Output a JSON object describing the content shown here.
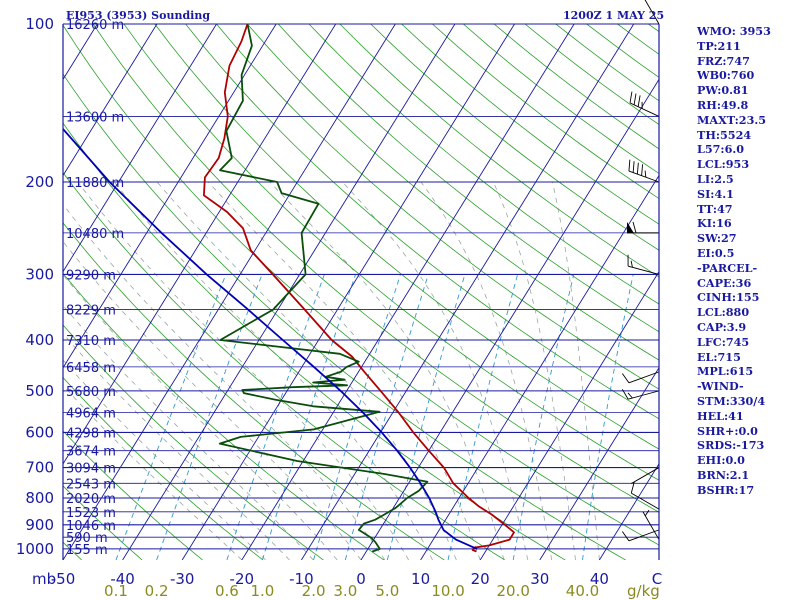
{
  "header": {
    "station": "EI953 (3953) Sounding",
    "time": "1200Z  1 MAY 25"
  },
  "colors": {
    "isobar": "#1a1aa0",
    "isotherm": "#1a1aa0",
    "dry_adiabat": "#2ca02c",
    "moist_adiabat": "#9aa8a0",
    "mixing_ratio": "#3399cc",
    "temperature": "#b00000",
    "dewpoint": "#0b4d0b",
    "parcel": "#0000b4",
    "axis_text": "#1a1aa0",
    "mixing_text": "#8a8a20"
  },
  "stats": [
    "WMO: 3953",
    "TP:211",
    "FRZ:747",
    "WB0:760",
    "PW:0.81",
    "RH:49.8",
    "MAXT:23.5",
    "TH:5524",
    "L57:6.0",
    "LCL:953",
    "LI:2.5",
    "SI:4.1",
    "TT:47",
    "KI:16",
    "SW:27",
    "EI:0.5",
    "-PARCEL-",
    "CAPE:36",
    "CINH:155",
    "LCL:880",
    "CAP:3.9",
    "LFC:745",
    "EL:715",
    "MPL:615",
    "-WIND-",
    "STM:330/4",
    "HEL:41",
    "SHR+:0.0",
    "SRDS:-173",
    "EHI:0.0",
    "BRN:2.1",
    "BSHR:17"
  ],
  "chart_data": {
    "type": "line",
    "title": "EI953 (3953) Sounding",
    "diagram": "skew-T log-p",
    "pressure_axis_unit": "mb",
    "pressure_range": [
      100,
      1050
    ],
    "temperature_range": [
      -50,
      50
    ],
    "pressure_ticks": [
      "100",
      "200",
      "300",
      "400",
      "500",
      "600",
      "700",
      "800",
      "900",
      "1000"
    ],
    "temperature_ticks": [
      "-50",
      "-40",
      "-30",
      "-20",
      "-10",
      "0",
      "10",
      "20",
      "30",
      "40",
      "C"
    ],
    "mixing_ratio_unit": "g/kg",
    "mixing_ratio_ticks": [
      "0.1",
      "0.2",
      "0.6",
      "1.0",
      "2.0",
      "3.0",
      "5.0",
      "10.0",
      "20.0",
      "40.0"
    ],
    "mixing_ratio_values": [
      0.1,
      0.2,
      0.6,
      1.0,
      2.0,
      3.0,
      5.0,
      10.0,
      20.0,
      40.0
    ],
    "height_levels": [
      {
        "p": 100,
        "label": "16260 m"
      },
      {
        "p": 150,
        "label": "13600 m"
      },
      {
        "p": 200,
        "label": "11880 m"
      },
      {
        "p": 250,
        "label": "10480 m"
      },
      {
        "p": 300,
        "label": "9290 m"
      },
      {
        "p": 350,
        "label": "8229 m"
      },
      {
        "p": 400,
        "label": "7310 m"
      },
      {
        "p": 450,
        "label": "6458 m"
      },
      {
        "p": 500,
        "label": "5680 m"
      },
      {
        "p": 550,
        "label": "4964 m"
      },
      {
        "p": 600,
        "label": "4298 m"
      },
      {
        "p": 650,
        "label": "3674 m"
      },
      {
        "p": 700,
        "label": "3094 m"
      },
      {
        "p": 750,
        "label": "2543 m"
      },
      {
        "p": 800,
        "label": "2020 m"
      },
      {
        "p": 850,
        "label": "1523 m"
      },
      {
        "p": 900,
        "label": "1046 m"
      },
      {
        "p": 950,
        "label": "590 m"
      },
      {
        "p": 1000,
        "label": "155 m"
      }
    ],
    "series": [
      {
        "name": "Temperature",
        "points": [
          [
            1012,
            18.5
          ],
          [
            1005,
            17.7
          ],
          [
            995,
            17.7
          ],
          [
            985,
            20.0
          ],
          [
            960,
            22.8
          ],
          [
            930,
            22.8
          ],
          [
            900,
            20.5
          ],
          [
            860,
            17.2
          ],
          [
            830,
            14.2
          ],
          [
            800,
            11.6
          ],
          [
            750,
            7.5
          ],
          [
            700,
            4.3
          ],
          [
            650,
            0.0
          ],
          [
            600,
            -4.5
          ],
          [
            550,
            -9.0
          ],
          [
            500,
            -14.3
          ],
          [
            460,
            -19.0
          ],
          [
            430,
            -22.7
          ],
          [
            400,
            -27.8
          ],
          [
            350,
            -35.5
          ],
          [
            300,
            -44.5
          ],
          [
            270,
            -50.7
          ],
          [
            245,
            -54.3
          ],
          [
            228,
            -58.7
          ],
          [
            212,
            -64.3
          ],
          [
            196,
            -66.0
          ],
          [
            180,
            -65.7
          ],
          [
            165,
            -66.8
          ],
          [
            150,
            -68.5
          ],
          [
            135,
            -71.5
          ],
          [
            120,
            -73.5
          ],
          [
            108,
            -74.0
          ],
          [
            100,
            -74.8
          ]
        ]
      },
      {
        "name": "Dewpoint",
        "points": [
          [
            1012,
            1.0
          ],
          [
            1000,
            2.0
          ],
          [
            970,
            0.5
          ],
          [
            950,
            -0.8
          ],
          [
            920,
            -3.5
          ],
          [
            895,
            -3.3
          ],
          [
            880,
            -1.8
          ],
          [
            860,
            -0.8
          ],
          [
            835,
            0.4
          ],
          [
            800,
            1.3
          ],
          [
            775,
            2.5
          ],
          [
            745,
            3.0
          ],
          [
            720,
            -5.0
          ],
          [
            680,
            -21.0
          ],
          [
            630,
            -35.8
          ],
          [
            612,
            -33.0
          ],
          [
            592,
            -21.5
          ],
          [
            570,
            -17.0
          ],
          [
            548,
            -12.3
          ],
          [
            535,
            -24.0
          ],
          [
            520,
            -31.0
          ],
          [
            505,
            -37.0
          ],
          [
            498,
            -37.6
          ],
          [
            492,
            -29.5
          ],
          [
            488,
            -20.5
          ],
          [
            482,
            -26.5
          ],
          [
            476,
            -21.5
          ],
          [
            470,
            -25.0
          ],
          [
            460,
            -23.0
          ],
          [
            450,
            -22.5
          ],
          [
            440,
            -21.0
          ],
          [
            425,
            -25.0
          ],
          [
            400,
            -46.5
          ],
          [
            350,
            -40.8
          ],
          [
            300,
            -39.0
          ],
          [
            250,
            -44.0
          ],
          [
            220,
            -44.2
          ],
          [
            210,
            -51.5
          ],
          [
            200,
            -53.4
          ],
          [
            190,
            -64.2
          ],
          [
            180,
            -63.5
          ],
          [
            160,
            -67.2
          ],
          [
            140,
            -67.6
          ],
          [
            125,
            -70.5
          ],
          [
            110,
            -71.8
          ],
          [
            100,
            -74.8
          ]
        ]
      },
      {
        "name": "Parcel",
        "points": [
          [
            1000,
            18.3
          ],
          [
            960,
            13.8
          ],
          [
            920,
            10.7
          ],
          [
            880,
            8.8
          ],
          [
            850,
            7.5
          ],
          [
            800,
            5.0
          ],
          [
            750,
            2.0
          ],
          [
            700,
            -1.4
          ],
          [
            650,
            -5.3
          ],
          [
            600,
            -9.8
          ],
          [
            550,
            -15.0
          ],
          [
            500,
            -21.0
          ],
          [
            450,
            -28.0
          ],
          [
            400,
            -36.0
          ],
          [
            350,
            -45.0
          ],
          [
            300,
            -55.6
          ],
          [
            250,
            -67.5
          ],
          [
            200,
            -81.5
          ],
          [
            150,
            -98.0
          ],
          [
            122,
            -108.5
          ]
        ]
      }
    ],
    "winds": [
      {
        "p": 960,
        "dir": 330,
        "spd": 5
      },
      {
        "p": 920,
        "dir": 250,
        "spd": 10
      },
      {
        "p": 840,
        "dir": 300,
        "spd": 10
      },
      {
        "p": 700,
        "dir": 240,
        "spd": 0
      },
      {
        "p": 500,
        "dir": 255,
        "spd": 15
      },
      {
        "p": 460,
        "dir": 250,
        "spd": 10
      },
      {
        "p": 300,
        "dir": 285,
        "spd": 15
      },
      {
        "p": 250,
        "dir": 270,
        "spd": 60
      },
      {
        "p": 200,
        "dir": 290,
        "spd": 45
      },
      {
        "p": 150,
        "dir": 295,
        "spd": 35
      },
      {
        "p": 100,
        "dir": 330,
        "spd": 15
      }
    ]
  }
}
